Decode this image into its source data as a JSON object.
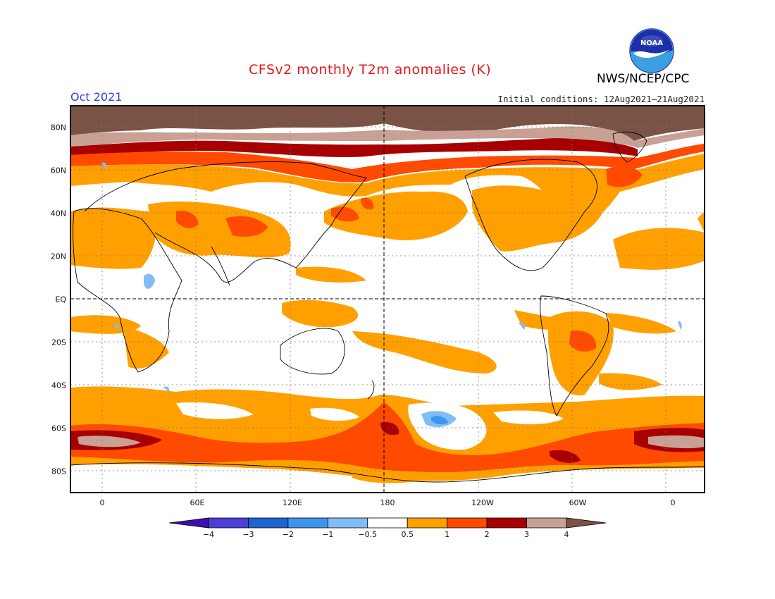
{
  "header": {
    "title": "CFSv2 monthly T2m anomalies (K)",
    "month": "Oct 2021",
    "initial_conditions": "Initial conditions: 12Aug2021–21Aug2021",
    "agency": "NWS/NCEP/CPC",
    "logo_text": "NOAA"
  },
  "axes": {
    "lat_labels": [
      "80N",
      "60N",
      "40N",
      "20N",
      "EQ",
      "20S",
      "40S",
      "60S",
      "80S"
    ],
    "lat_values": [
      80,
      60,
      40,
      20,
      0,
      -20,
      -40,
      -60,
      -80
    ],
    "lon_labels": [
      "0",
      "60E",
      "120E",
      "180",
      "120W",
      "60W",
      "0"
    ],
    "lon_values": [
      0,
      60,
      120,
      180,
      240,
      300,
      360
    ],
    "lon_range": [
      -20,
      380
    ],
    "lat_range": [
      -90,
      90
    ]
  },
  "legend": {
    "labels": [
      "−4",
      "−3",
      "−2",
      "−1",
      "−0.5",
      "0.5",
      "1",
      "2",
      "3",
      "4"
    ],
    "colors": [
      "#3a0eb0",
      "#4b3fd6",
      "#1e64d0",
      "#3f94f0",
      "#80bdf5",
      "#ffffff",
      "#ffa000",
      "#ff4a00",
      "#a80000",
      "#c8a094",
      "#7b5246"
    ]
  },
  "colors": {
    "orange": "#ffa000",
    "red_orange": "#ff4a00",
    "dark_red": "#a80000",
    "pink_brown": "#c8a094",
    "brown": "#7b5246",
    "light_blue": "#80bdf5",
    "blue": "#3f94f0"
  }
}
